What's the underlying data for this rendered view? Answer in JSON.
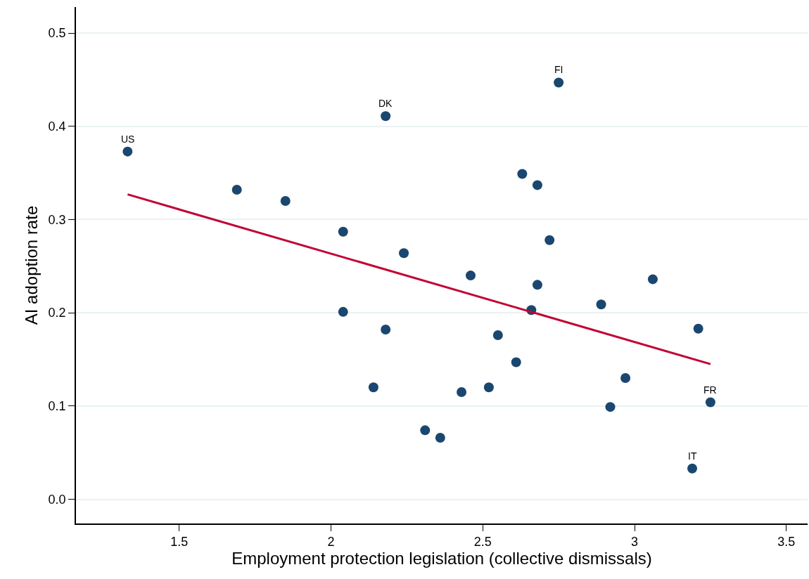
{
  "chart_data": {
    "type": "scatter",
    "xlabel": "Employment protection legislation (collective dismissals)",
    "ylabel": "AI adoption rate",
    "series": [
      {
        "color": "#1a476f",
        "x": [
          1.33,
          1.69,
          1.85,
          2.04,
          2.04,
          2.14,
          2.18,
          2.18,
          2.24,
          2.31,
          2.36,
          2.43,
          2.46,
          2.52,
          2.55,
          2.61,
          2.63,
          2.66,
          2.68,
          2.68,
          2.72,
          2.75,
          2.89,
          2.92,
          2.97,
          3.06,
          3.19,
          3.21,
          3.25
        ],
        "values": [
          0.373,
          0.332,
          0.32,
          0.287,
          0.201,
          0.12,
          0.411,
          0.182,
          0.264,
          0.074,
          0.066,
          0.115,
          0.24,
          0.12,
          0.176,
          0.147,
          0.349,
          0.203,
          0.337,
          0.23,
          0.278,
          0.447,
          0.209,
          0.099,
          0.13,
          0.236,
          0.033,
          0.183,
          0.104
        ]
      },
      {
        "type": "line",
        "marker": "none",
        "color": "#c10534",
        "x": [
          1.33,
          3.25
        ],
        "values": [
          0.327,
          0.145
        ]
      }
    ],
    "annotations": [
      {
        "text": "US",
        "x": 1.33,
        "y": 0.373
      },
      {
        "text": "DK",
        "x": 2.18,
        "y": 0.411
      },
      {
        "text": "FI",
        "x": 2.75,
        "y": 0.447
      },
      {
        "text": "FR",
        "x": 3.25,
        "y": 0.104
      },
      {
        "text": "IT",
        "x": 3.19,
        "y": 0.033
      }
    ],
    "xlim": [
      1.16,
      3.57
    ],
    "xticks": [
      1.5,
      2,
      2.5,
      3,
      3.5
    ],
    "ylim": [
      -0.026,
      0.528
    ],
    "yticks": [
      {
        "value": 0,
        "label": "0.0"
      },
      0.1,
      0.2,
      0.3,
      0.4,
      0.5
    ],
    "grid": "y",
    "marker": "circle",
    "line_style": "solid"
  }
}
